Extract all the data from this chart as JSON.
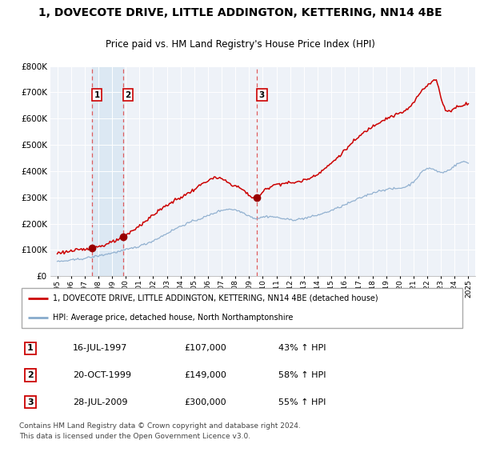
{
  "title": "1, DOVECOTE DRIVE, LITTLE ADDINGTON, KETTERING, NN14 4BE",
  "subtitle": "Price paid vs. HM Land Registry's House Price Index (HPI)",
  "legend_line1": "1, DOVECOTE DRIVE, LITTLE ADDINGTON, KETTERING, NN14 4BE (detached house)",
  "legend_line2": "HPI: Average price, detached house, North Northamptonshire",
  "footer": "Contains HM Land Registry data © Crown copyright and database right 2024.\nThis data is licensed under the Open Government Licence v3.0.",
  "transactions": [
    {
      "num": 1,
      "date": "16-JUL-1997",
      "price": 107000,
      "hpi_pct": "43% ↑ HPI",
      "x": 1997.54
    },
    {
      "num": 2,
      "date": "20-OCT-1999",
      "price": 149000,
      "hpi_pct": "58% ↑ HPI",
      "x": 1999.8
    },
    {
      "num": 3,
      "date": "28-JUL-2009",
      "price": 300000,
      "hpi_pct": "55% ↑ HPI",
      "x": 2009.57
    }
  ],
  "red_color": "#cc0000",
  "blue_color": "#88aacc",
  "shade_color": "#ddeeff",
  "dashed_color": "#dd4444",
  "ylim": [
    0,
    800000
  ],
  "yticks": [
    0,
    100000,
    200000,
    300000,
    400000,
    500000,
    600000,
    700000,
    800000
  ],
  "xlim": [
    1994.5,
    2025.5
  ],
  "xtick_years": [
    1995,
    1996,
    1997,
    1998,
    1999,
    2000,
    2001,
    2002,
    2003,
    2004,
    2005,
    2006,
    2007,
    2008,
    2009,
    2010,
    2011,
    2012,
    2013,
    2014,
    2015,
    2016,
    2017,
    2018,
    2019,
    2020,
    2021,
    2022,
    2023,
    2024,
    2025
  ]
}
